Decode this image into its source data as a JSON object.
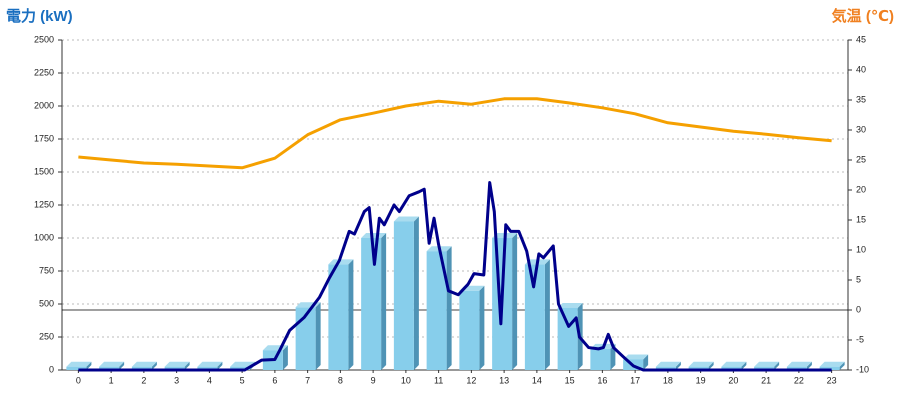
{
  "chart_data": {
    "type": "bar",
    "y_label": "電力 (kW)",
    "y2_label": "気温 (℃)",
    "categories": [
      "0",
      "1",
      "2",
      "3",
      "4",
      "5",
      "6",
      "7",
      "8",
      "9",
      "10",
      "11",
      "12",
      "13",
      "14",
      "15",
      "16",
      "17",
      "18",
      "19",
      "20",
      "21",
      "22",
      "23"
    ],
    "series": [
      {
        "type": "bar",
        "color": "#87ceeb",
        "values": [
          25,
          25,
          25,
          25,
          25,
          25,
          150,
          475,
          800,
          1000,
          1125,
          900,
          600,
          1000,
          800,
          470,
          160,
          80,
          25,
          25,
          25,
          25,
          25,
          25
        ]
      },
      {
        "type": "line",
        "color": "#00008b",
        "x": [
          0,
          5.08,
          5.6,
          6.0,
          6.15,
          6.45,
          6.9,
          7.36,
          7.67,
          7.97,
          8.27,
          8.43,
          8.73,
          8.88,
          9.04,
          9.19,
          9.34,
          9.64,
          9.8,
          10.1,
          10.4,
          10.56,
          10.71,
          10.86,
          11.0,
          11.3,
          11.6,
          11.9,
          12.08,
          12.38,
          12.56,
          12.7,
          12.9,
          13.05,
          13.2,
          13.45,
          13.69,
          13.9,
          14.06,
          14.2,
          14.5,
          14.66,
          14.97,
          15.2,
          15.3,
          15.58,
          15.88,
          16.03,
          16.18,
          16.34,
          16.64,
          16.95,
          17.25,
          23
        ],
        "values": [
          0,
          0,
          75,
          80,
          150,
          300,
          400,
          550,
          700,
          830,
          1050,
          1030,
          1200,
          1230,
          800,
          1150,
          1100,
          1250,
          1200,
          1320,
          1350,
          1370,
          960,
          1150,
          950,
          600,
          570,
          650,
          730,
          720,
          1420,
          1200,
          350,
          1100,
          1050,
          1050,
          900,
          630,
          880,
          850,
          940,
          500,
          330,
          395,
          250,
          170,
          160,
          170,
          270,
          170,
          100,
          30,
          0,
          0
        ]
      },
      {
        "type": "line",
        "axis": "y2",
        "color": "#f5a000",
        "values": [
          25.5,
          25,
          24.5,
          24.3,
          24,
          23.7,
          25.3,
          29.2,
          31.7,
          32.8,
          34,
          34.8,
          34.3,
          35.2,
          35.2,
          34.5,
          33.7,
          32.7,
          31.2,
          30.5,
          29.8,
          29.3,
          28.7,
          28.2
        ]
      }
    ],
    "ylim": [
      0,
      2500
    ],
    "yticks": [
      0,
      250,
      500,
      750,
      1000,
      1250,
      1500,
      1750,
      2000,
      2250,
      2500
    ],
    "y2lim": [
      -10,
      45
    ],
    "y2ticks": [
      -10,
      -5,
      0,
      5,
      10,
      15,
      20,
      25,
      30,
      35,
      40,
      45
    ],
    "y2_refline": 0,
    "grid": true
  }
}
